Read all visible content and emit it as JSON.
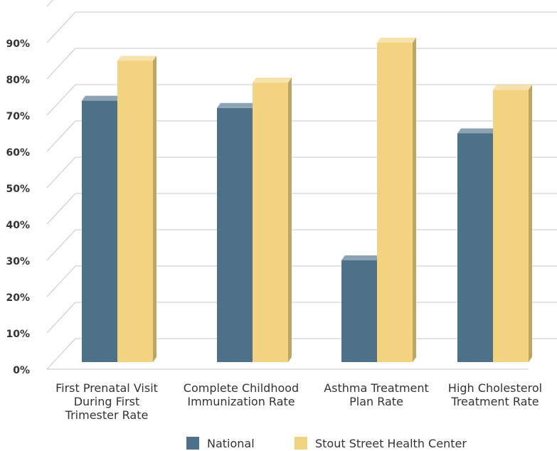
{
  "colors": {
    "national": "#4d7189",
    "stout": "#f2d37f",
    "grid": "#c8c8c8",
    "text": "#333333"
  },
  "chart_data": {
    "type": "bar",
    "categories": [
      [
        "First Prenatal Visit",
        "During First",
        "Trimester Rate"
      ],
      [
        "Complete Childhood",
        "Immunization Rate"
      ],
      [
        "Asthma Treatment",
        "Plan Rate"
      ],
      [
        "High Cholesterol",
        "Treatment Rate"
      ]
    ],
    "series": [
      {
        "name": "National",
        "values": [
          74,
          72,
          30,
          65
        ]
      },
      {
        "name": "Stout Street Health Center",
        "values": [
          85,
          79,
          90,
          77
        ]
      }
    ],
    "yticks": [
      "0%",
      "10%",
      "20%",
      "30%",
      "40%",
      "50%",
      "60%",
      "70%",
      "80%",
      "90%"
    ],
    "ylim": [
      0,
      100
    ],
    "grid": true,
    "legend": "bottom"
  }
}
